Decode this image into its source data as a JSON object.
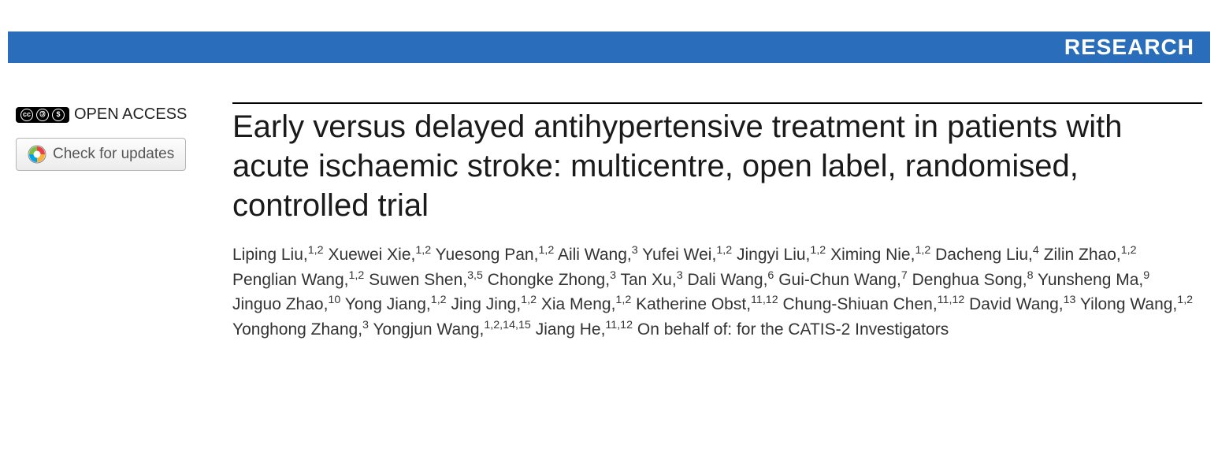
{
  "banner": {
    "label": "RESEARCH",
    "bg": "#2a6ebb",
    "fg": "#ffffff"
  },
  "sidebar": {
    "open_access_label": "OPEN ACCESS",
    "cc_glyphs": [
      "CC",
      "①",
      "$"
    ],
    "updates_label": "Check for updates"
  },
  "article": {
    "title": "Early versus delayed antihypertensive treatment in patients with acute ischaemic stroke: multicentre, open label, randomised, controlled trial",
    "authors": [
      {
        "name": "Liping Liu",
        "aff": "1,2"
      },
      {
        "name": "Xuewei Xie",
        "aff": "1,2"
      },
      {
        "name": "Yuesong Pan",
        "aff": "1,2"
      },
      {
        "name": "Aili Wang",
        "aff": "3"
      },
      {
        "name": "Yufei Wei",
        "aff": "1,2"
      },
      {
        "name": "Jingyi Liu",
        "aff": "1,2"
      },
      {
        "name": "Ximing Nie",
        "aff": "1,2"
      },
      {
        "name": "Dacheng Liu",
        "aff": "4"
      },
      {
        "name": "Zilin Zhao",
        "aff": "1,2"
      },
      {
        "name": "Penglian Wang",
        "aff": "1,2"
      },
      {
        "name": "Suwen Shen",
        "aff": "3,5"
      },
      {
        "name": "Chongke Zhong",
        "aff": "3"
      },
      {
        "name": "Tan Xu",
        "aff": "3"
      },
      {
        "name": "Dali Wang",
        "aff": "6"
      },
      {
        "name": "Gui-Chun Wang",
        "aff": "7"
      },
      {
        "name": "Denghua Song",
        "aff": "8"
      },
      {
        "name": "Yunsheng Ma",
        "aff": "9"
      },
      {
        "name": "Jinguo Zhao",
        "aff": "10"
      },
      {
        "name": "Yong Jiang",
        "aff": "1,2"
      },
      {
        "name": "Jing Jing",
        "aff": "1,2"
      },
      {
        "name": "Xia Meng",
        "aff": "1,2"
      },
      {
        "name": "Katherine Obst",
        "aff": "11,12"
      },
      {
        "name": "Chung-Shiuan Chen",
        "aff": "11,12"
      },
      {
        "name": "David Wang",
        "aff": "13"
      },
      {
        "name": "Yilong Wang",
        "aff": "1,2"
      },
      {
        "name": "Yonghong Zhang",
        "aff": "3"
      },
      {
        "name": "Yongjun Wang",
        "aff": "1,2,14,15"
      },
      {
        "name": "Jiang He",
        "aff": "11,12"
      }
    ],
    "behalf": "On behalf of: for the CATIS-2 Investigators"
  },
  "style": {
    "title_fontsize": 40,
    "author_fontsize": 21,
    "banner_fontsize": 28,
    "font_family_sans": "Arial, Helvetica, sans-serif"
  }
}
